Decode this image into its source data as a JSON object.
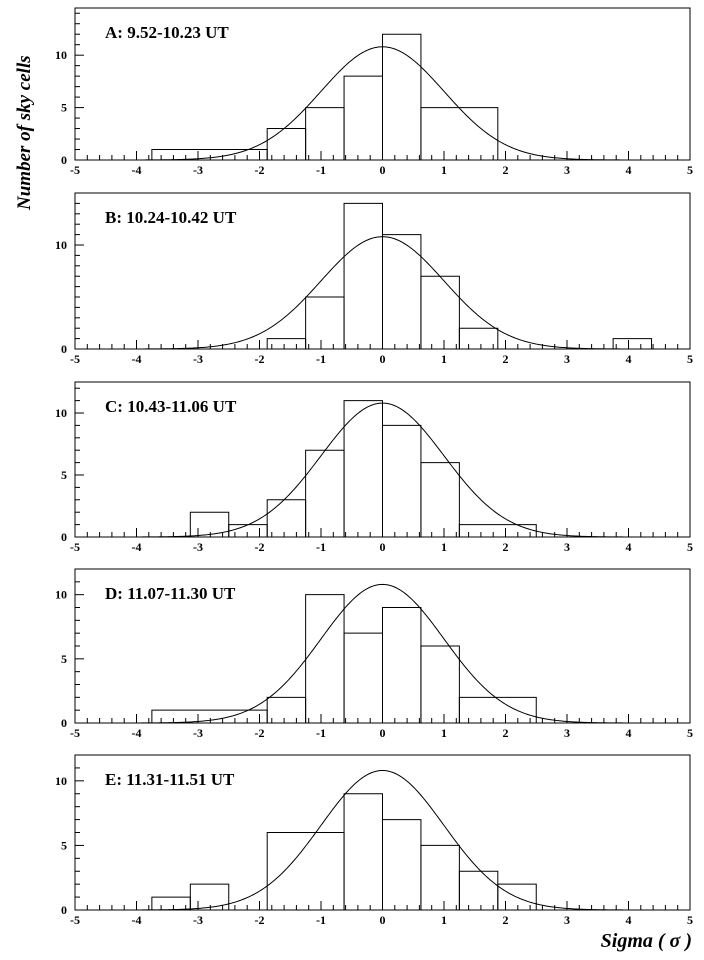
{
  "chart_data": {
    "type": "histogram",
    "ylabel": "Number of sky cells",
    "xlabel": "Sigma ( σ )",
    "xlim": [
      -5,
      5
    ],
    "xticks": [
      -5,
      -4,
      -3,
      -2,
      -1,
      0,
      1,
      2,
      3,
      4,
      5
    ],
    "bin_width": 0.625,
    "bin_edges": [
      -3.75,
      -3.125,
      -2.5,
      -1.875,
      -1.25,
      -0.625,
      0,
      0.625,
      1.25,
      1.875,
      2.5
    ],
    "gaussian": {
      "amplitude": 10.8,
      "mean": 0,
      "sigma": 1
    },
    "panels": [
      {
        "title": "A: 9.52-10.23 UT",
        "ylim": [
          0,
          14.5
        ],
        "yticks": [
          0,
          5,
          10
        ],
        "bins": [
          {
            "x0": -3.75,
            "x1": -1.875,
            "count": 1
          },
          {
            "x0": -1.875,
            "x1": -1.25,
            "count": 3
          },
          {
            "x0": -1.25,
            "x1": -0.625,
            "count": 5
          },
          {
            "x0": -0.625,
            "x1": 0,
            "count": 8
          },
          {
            "x0": 0,
            "x1": 0.625,
            "count": 12
          },
          {
            "x0": 0.625,
            "x1": 1.875,
            "count": 5
          }
        ]
      },
      {
        "title": "B: 10.24-10.42 UT",
        "ylim": [
          0,
          15
        ],
        "yticks": [
          0,
          10
        ],
        "bins": [
          {
            "x0": -1.875,
            "x1": -1.25,
            "count": 1
          },
          {
            "x0": -1.25,
            "x1": -0.625,
            "count": 5
          },
          {
            "x0": -0.625,
            "x1": 0,
            "count": 14
          },
          {
            "x0": 0,
            "x1": 0.625,
            "count": 11
          },
          {
            "x0": 0.625,
            "x1": 1.25,
            "count": 7
          },
          {
            "x0": 1.25,
            "x1": 1.875,
            "count": 2
          },
          {
            "x0": 3.75,
            "x1": 4.375,
            "count": 1
          }
        ]
      },
      {
        "title": "C: 10.43-11.06 UT",
        "ylim": [
          0,
          12.5
        ],
        "yticks": [
          0,
          5,
          10
        ],
        "bins": [
          {
            "x0": -3.125,
            "x1": -2.5,
            "count": 2
          },
          {
            "x0": -2.5,
            "x1": -1.875,
            "count": 1
          },
          {
            "x0": -1.875,
            "x1": -1.25,
            "count": 3
          },
          {
            "x0": -1.25,
            "x1": -0.625,
            "count": 7
          },
          {
            "x0": -0.625,
            "x1": 0,
            "count": 11
          },
          {
            "x0": 0,
            "x1": 0.625,
            "count": 9
          },
          {
            "x0": 0.625,
            "x1": 1.25,
            "count": 6
          },
          {
            "x0": 1.25,
            "x1": 2.5,
            "count": 1
          }
        ]
      },
      {
        "title": "D: 11.07-11.30 UT",
        "ylim": [
          0,
          12
        ],
        "yticks": [
          0,
          5,
          10
        ],
        "bins": [
          {
            "x0": -3.75,
            "x1": -1.875,
            "count": 1
          },
          {
            "x0": -1.875,
            "x1": -1.25,
            "count": 2
          },
          {
            "x0": -1.25,
            "x1": -0.625,
            "count": 10
          },
          {
            "x0": -0.625,
            "x1": 0,
            "count": 7
          },
          {
            "x0": 0,
            "x1": 0.625,
            "count": 9
          },
          {
            "x0": 0.625,
            "x1": 1.25,
            "count": 6
          },
          {
            "x0": 1.25,
            "x1": 2.5,
            "count": 2
          }
        ]
      },
      {
        "title": "E: 11.31-11.51 UT",
        "ylim": [
          0,
          12
        ],
        "yticks": [
          0,
          5,
          10
        ],
        "bins": [
          {
            "x0": -3.75,
            "x1": -3.125,
            "count": 1
          },
          {
            "x0": -3.125,
            "x1": -2.5,
            "count": 2
          },
          {
            "x0": -1.875,
            "x1": -0.625,
            "count": 6
          },
          {
            "x0": -0.625,
            "x1": 0,
            "count": 9
          },
          {
            "x0": 0,
            "x1": 0.625,
            "count": 7
          },
          {
            "x0": 0.625,
            "x1": 1.25,
            "count": 5
          },
          {
            "x0": 1.25,
            "x1": 1.875,
            "count": 3
          },
          {
            "x0": 1.875,
            "x1": 2.5,
            "count": 2
          }
        ]
      }
    ]
  }
}
